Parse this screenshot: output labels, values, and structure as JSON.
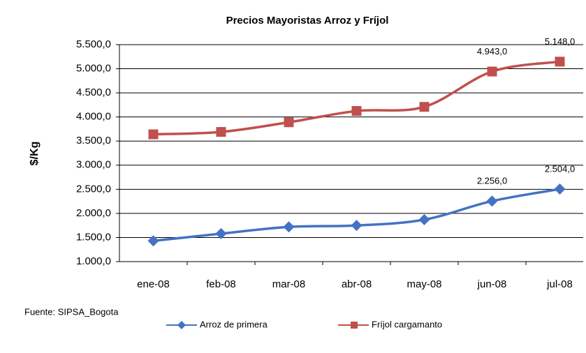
{
  "chart_data": {
    "type": "line",
    "title": "Precios Mayoristas  Arroz  y Fríjol",
    "y_label": "$/Kg",
    "source": "Fuente: SIPSA_Bogota",
    "categories": [
      "ene-08",
      "feb-08",
      "mar-08",
      "abr-08",
      "may-08",
      "jun-08",
      "jul-08"
    ],
    "series": [
      {
        "name": "Arroz de primera",
        "color": "#4472c4",
        "marker": "diamond",
        "values": [
          1430,
          1580,
          1720,
          1750,
          1870,
          2256,
          2504
        ],
        "value_labels": [
          null,
          null,
          null,
          null,
          null,
          "2.256,0",
          "2.504,0"
        ]
      },
      {
        "name": "Fríjol cargamanto",
        "color": "#c0504d",
        "marker": "square",
        "values": [
          3640,
          3690,
          3890,
          4125,
          4210,
          4943,
          5148
        ],
        "value_labels": [
          null,
          null,
          null,
          null,
          null,
          "4.943,0",
          "5.148,0"
        ]
      }
    ],
    "ylim": [
      1000,
      5500
    ],
    "yticks": [
      {
        "value": 1000,
        "label": "1.000,0"
      },
      {
        "value": 1500,
        "label": "1.500,0"
      },
      {
        "value": 2000,
        "label": "2.000,0"
      },
      {
        "value": 2500,
        "label": "2.500,0"
      },
      {
        "value": 3000,
        "label": "3.000,0"
      },
      {
        "value": 3500,
        "label": "3.500,0"
      },
      {
        "value": 4000,
        "label": "4.000,0"
      },
      {
        "value": 4500,
        "label": "4.500,0"
      },
      {
        "value": 5000,
        "label": "5.000,0"
      },
      {
        "value": 5500,
        "label": "5.500,0"
      }
    ],
    "grid": true,
    "smooth": true,
    "legend": "bottom"
  }
}
